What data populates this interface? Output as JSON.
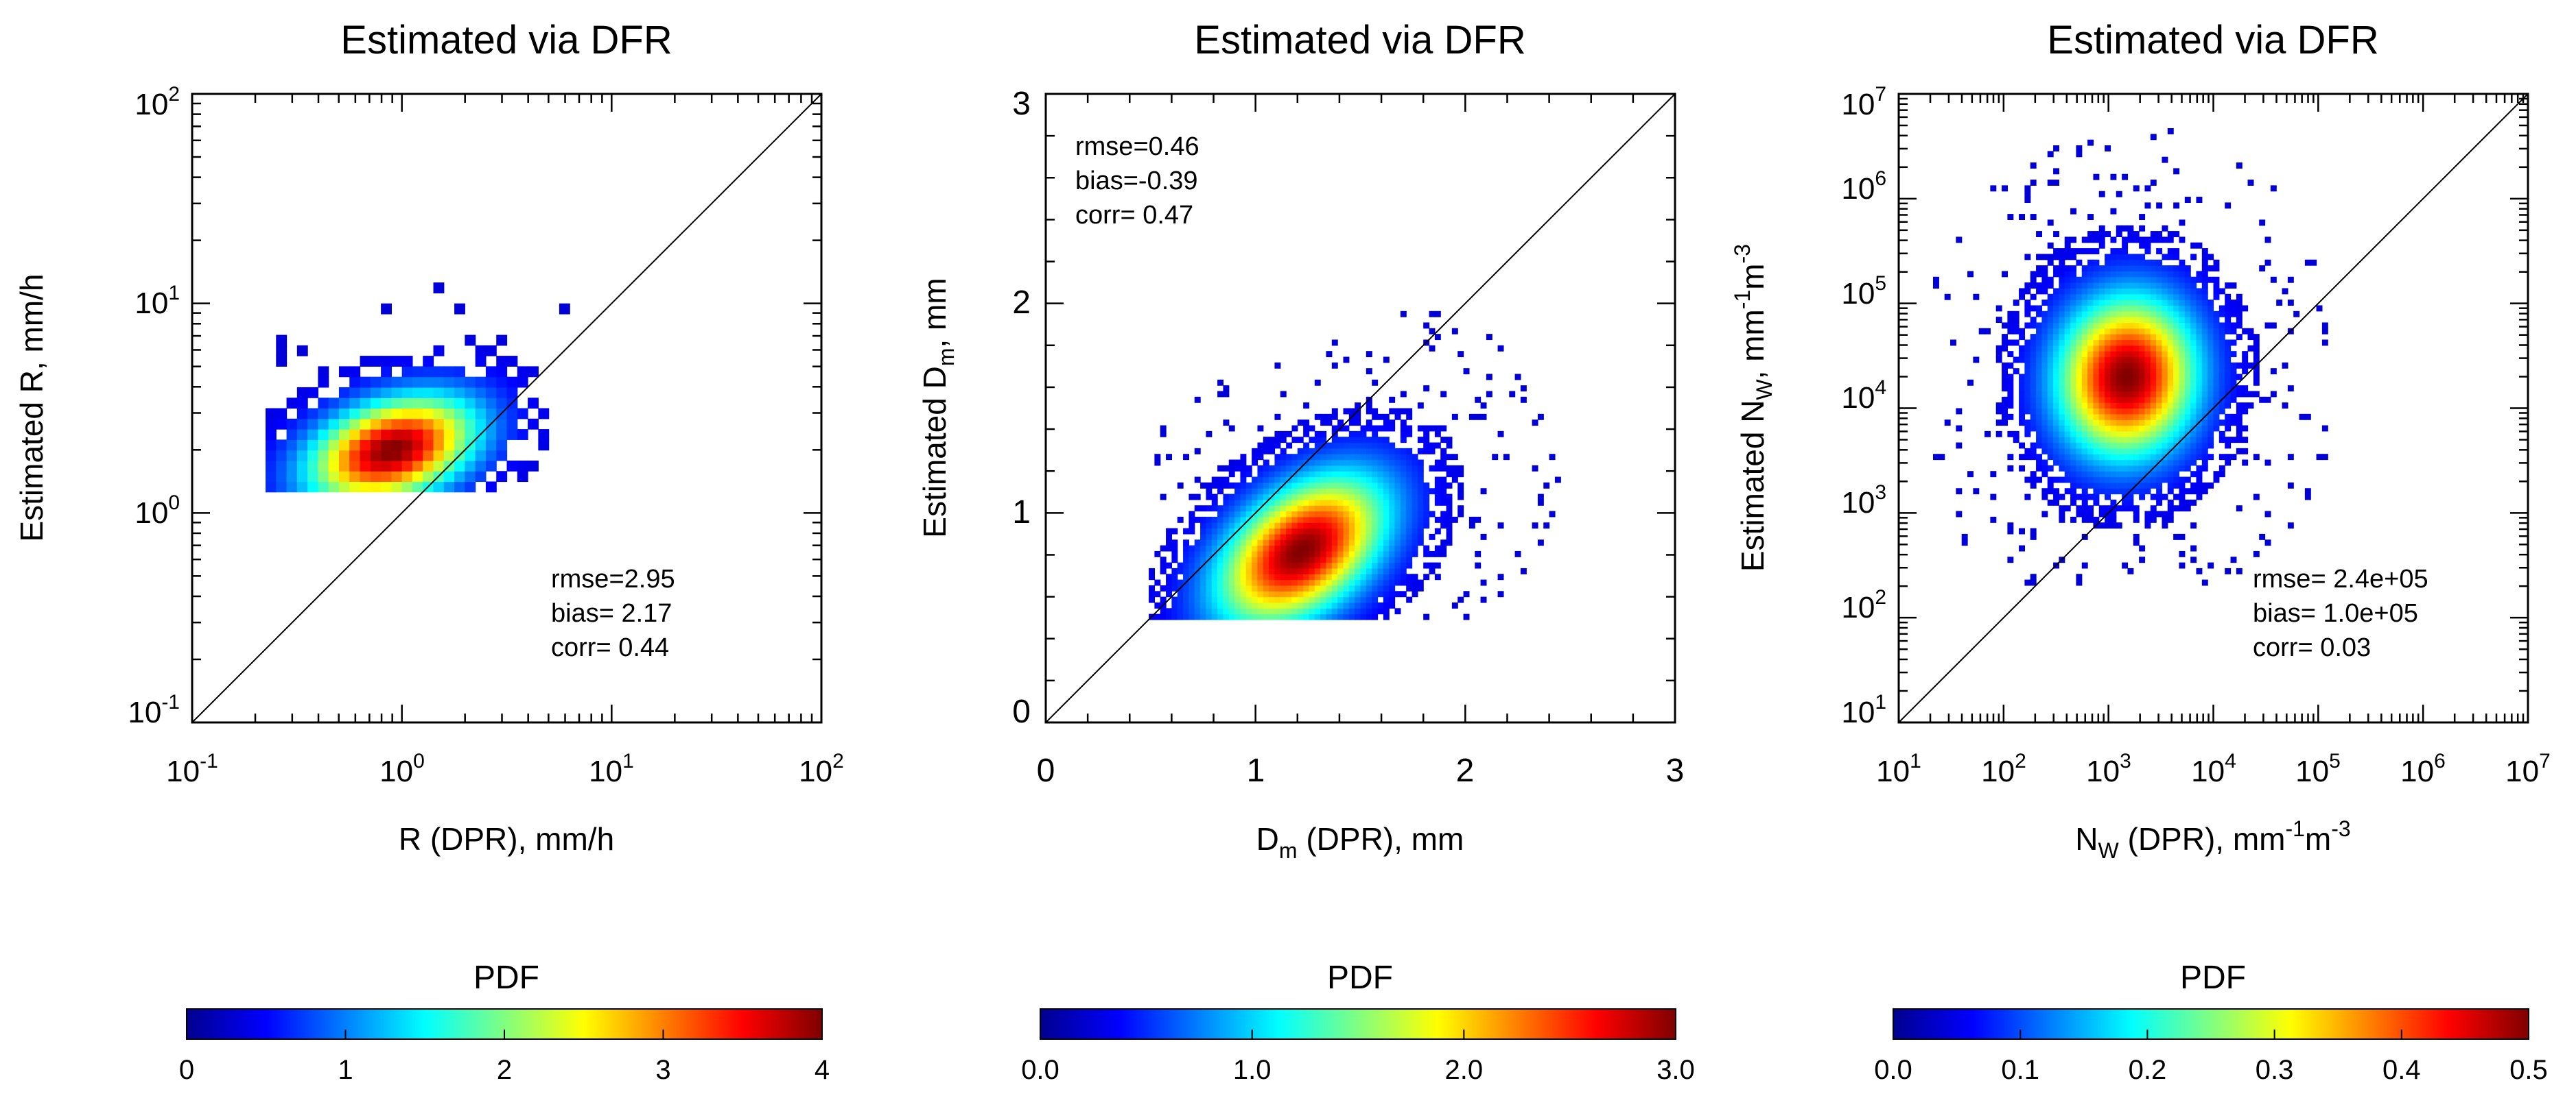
{
  "chart_data": [
    {
      "type": "heatmap",
      "title": "Estimated via DFR",
      "xlabel": "R (DPR), mm/h",
      "ylabel": "Estimated R, mm/h",
      "x_scale": "log",
      "y_scale": "log",
      "xlim": [
        0.1,
        100
      ],
      "ylim": [
        0.1,
        100
      ],
      "x_ticks": [
        {
          "value": 0.1,
          "base": "10",
          "exp": "-1"
        },
        {
          "value": 1,
          "base": "10",
          "exp": "0"
        },
        {
          "value": 10,
          "base": "10",
          "exp": "1"
        },
        {
          "value": 100,
          "base": "10",
          "exp": "2"
        }
      ],
      "y_ticks": [
        {
          "value": 0.1,
          "base": "10",
          "exp": "-1"
        },
        {
          "value": 1,
          "base": "10",
          "exp": "0"
        },
        {
          "value": 10,
          "base": "10",
          "exp": "1"
        },
        {
          "value": 100,
          "base": "10",
          "exp": "2"
        }
      ],
      "one_to_one_line": true,
      "density": {
        "center": [
          0.9,
          2.0
        ],
        "spread_x_decades": 0.2,
        "spread_y_decades": 0.13,
        "x_range": [
          0.22,
          6.5
        ],
        "y_range": [
          1.3,
          17
        ],
        "y_floor": 1.3,
        "correlation": 0.44
      },
      "stats": [
        "rmse=2.95",
        "bias= 2.17",
        "corr= 0.44"
      ],
      "stats_position": "bottom-right",
      "colorbar": {
        "title": "PDF",
        "range": [
          0,
          4
        ],
        "tick_values": [
          0,
          1,
          2,
          3,
          4
        ],
        "tick_labels": [
          "0",
          "1",
          "2",
          "3",
          "4"
        ]
      }
    },
    {
      "type": "heatmap",
      "title": "Estimated via DFR",
      "xlabel": "D_m (DPR), mm",
      "ylabel": "Estimated D_m, mm",
      "x_scale": "linear",
      "y_scale": "linear",
      "xlim": [
        0,
        3
      ],
      "ylim": [
        0,
        3
      ],
      "x_ticks": [
        {
          "value": 0,
          "label": "0"
        },
        {
          "value": 1,
          "label": "1"
        },
        {
          "value": 2,
          "label": "2"
        },
        {
          "value": 3,
          "label": "3"
        }
      ],
      "y_ticks": [
        {
          "value": 0,
          "label": "0"
        },
        {
          "value": 1,
          "label": "1"
        },
        {
          "value": 2,
          "label": "2"
        },
        {
          "value": 3,
          "label": "3"
        }
      ],
      "one_to_one_line": true,
      "density": {
        "center": [
          1.22,
          0.82
        ],
        "spread_x": 0.2,
        "spread_y": 0.18,
        "x_range": [
          0.5,
          2.5
        ],
        "y_range": [
          0.5,
          2.25
        ],
        "y_floor": 0.5,
        "correlation": 0.47
      },
      "stats": [
        "rmse=0.46",
        "bias=-0.39",
        "corr= 0.47"
      ],
      "stats_position": "top-left",
      "colorbar": {
        "title": "PDF",
        "range": [
          0,
          3
        ],
        "tick_values": [
          0,
          1,
          2,
          3
        ],
        "tick_labels": [
          "0.0",
          "1.0",
          "2.0",
          "3.0"
        ]
      }
    },
    {
      "type": "heatmap",
      "title": "Estimated via DFR",
      "xlabel": "N_W (DPR), mm^-1 m^-3",
      "ylabel": "Estimated N_W, mm^-1 m^-3",
      "x_scale": "log",
      "y_scale": "log",
      "xlim": [
        10,
        10000000
      ],
      "ylim": [
        10,
        10000000
      ],
      "x_ticks": [
        {
          "value": 10,
          "base": "10",
          "exp": "1"
        },
        {
          "value": 100,
          "base": "10",
          "exp": "2"
        },
        {
          "value": 1000,
          "base": "10",
          "exp": "3"
        },
        {
          "value": 10000,
          "base": "10",
          "exp": "4"
        },
        {
          "value": 100000,
          "base": "10",
          "exp": "5"
        },
        {
          "value": 1000000,
          "base": "10",
          "exp": "6"
        },
        {
          "value": 10000000,
          "base": "10",
          "exp": "7"
        }
      ],
      "y_ticks": [
        {
          "value": 10,
          "base": "10",
          "exp": "1"
        },
        {
          "value": 100,
          "base": "10",
          "exp": "2"
        },
        {
          "value": 1000,
          "base": "10",
          "exp": "3"
        },
        {
          "value": 10000,
          "base": "10",
          "exp": "4"
        },
        {
          "value": 100000,
          "base": "10",
          "exp": "5"
        },
        {
          "value": 1000000,
          "base": "10",
          "exp": "6"
        },
        {
          "value": 10000000,
          "base": "10",
          "exp": "7"
        }
      ],
      "one_to_one_line": true,
      "density": {
        "center": [
          1500,
          20000
        ],
        "spread_x_decades": 0.33,
        "spread_y_decades": 0.38,
        "x_range": [
          20,
          120000
        ],
        "y_range": [
          200,
          5000000
        ],
        "y_floor": 0,
        "correlation": 0.03
      },
      "stats": [
        "rmse= 2.4e+05",
        "bias= 1.0e+05",
        "corr= 0.03"
      ],
      "stats_position": "bottom-right",
      "colorbar": {
        "title": "PDF",
        "range": [
          0,
          0.5
        ],
        "tick_values": [
          0,
          0.1,
          0.2,
          0.3,
          0.4,
          0.5
        ],
        "tick_labels": [
          "0.0",
          "0.1",
          "0.2",
          "0.3",
          "0.4",
          "0.5"
        ]
      }
    }
  ],
  "label_parts": {
    "p1_xlabel": [
      "R (DPR), mm/h"
    ],
    "p1_ylabel": [
      "Estimated R, mm/h"
    ],
    "p2_xlabel": [
      "D",
      "m",
      " (DPR), mm"
    ],
    "p2_ylabel": [
      "Estimated D",
      "m",
      ", mm"
    ],
    "p3_xlabel": [
      "N",
      "W",
      " (DPR), mm",
      "-1",
      "m",
      "-3"
    ],
    "p3_ylabel": [
      "Estimated N",
      "W",
      ", mm",
      "-1",
      "m",
      "-3"
    ]
  },
  "colors": {
    "jet": [
      "#00008f",
      "#0000ff",
      "#0080ff",
      "#00ffff",
      "#80ff80",
      "#ffff00",
      "#ff8000",
      "#ff0000",
      "#800000"
    ],
    "background": "#ffffff",
    "axis": "#000000"
  }
}
